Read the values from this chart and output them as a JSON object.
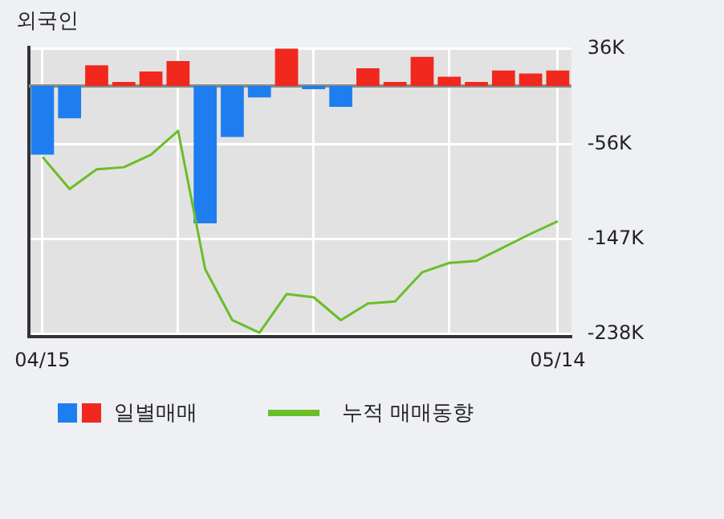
{
  "chart_data": {
    "type": "bar",
    "title": "외국인",
    "categories": [
      "04/15",
      null,
      null,
      null,
      null,
      null,
      null,
      null,
      null,
      null,
      null,
      null,
      null,
      null,
      null,
      null,
      null,
      null,
      null,
      "05/14"
    ],
    "series": [
      {
        "name": "일별매매",
        "colors": [
          "#1e7ef0",
          "#1e7ef0",
          "#f0281e",
          "#f0281e",
          "#f0281e",
          "#f0281e",
          "#1e7ef0",
          "#1e7ef0",
          "#1e7ef0",
          "#f0281e",
          "#1e7ef0",
          "#1e7ef0",
          "#f0281e",
          "#f0281e",
          "#f0281e",
          "#f0281e",
          "#f0281e",
          "#f0281e",
          "#f0281e",
          "#f0281e"
        ],
        "values": [
          -66,
          -31,
          20,
          4,
          14,
          24,
          -132,
          -49,
          -11,
          36,
          -3,
          -20,
          17,
          4,
          28,
          9,
          4,
          15,
          12,
          15
        ]
      },
      {
        "name": "누적 매매동향",
        "type": "line",
        "color": "#6abe28",
        "values": [
          -68,
          -99,
          -80,
          -78,
          -66,
          -43,
          -176,
          -225,
          -237,
          -200,
          -203,
          -225,
          -209,
          -207,
          -179,
          -170,
          -168,
          -155,
          -142,
          -130
        ]
      }
    ],
    "ylim": [
      -241,
      37
    ],
    "yticks": [
      {
        "value": 36,
        "label": "36K"
      },
      {
        "value": -56,
        "label": "-56K"
      },
      {
        "value": -147,
        "label": "-147K"
      },
      {
        "value": -238,
        "label": "-238K"
      }
    ],
    "grid": true,
    "legend": "bottom",
    "marker": "none"
  }
}
